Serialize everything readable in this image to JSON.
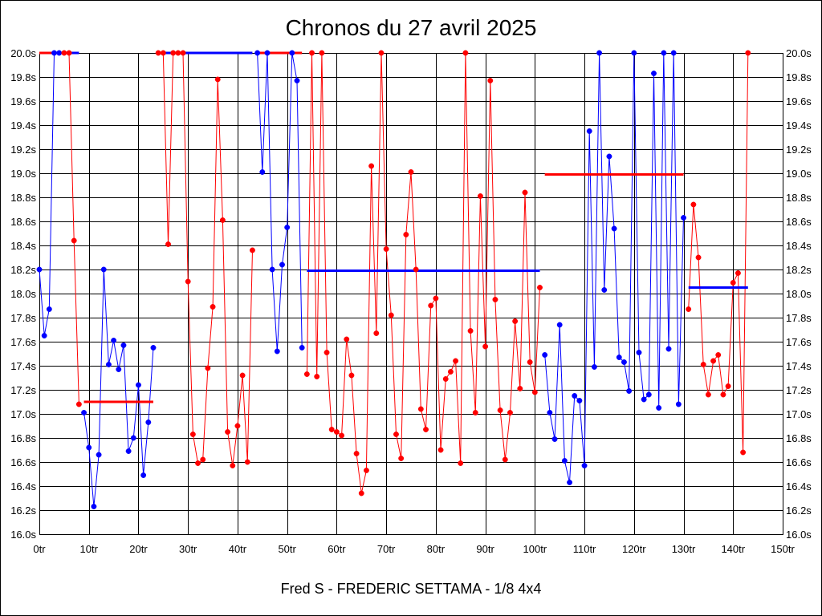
{
  "chart_data": {
    "type": "line",
    "title": "Chronos du 27 avril 2025",
    "caption": "Fred S - FREDERIC SETTAMA - 1/8 4x4",
    "xlabel": "",
    "ylabel": "",
    "xlim": [
      0,
      150
    ],
    "ylim": [
      16.0,
      20.0
    ],
    "grid": true,
    "x_ticks": [
      0,
      10,
      20,
      30,
      40,
      50,
      60,
      70,
      80,
      90,
      100,
      110,
      120,
      130,
      140,
      150
    ],
    "x_tick_labels": [
      "0tr",
      "10tr",
      "20tr",
      "30tr",
      "40tr",
      "50tr",
      "60tr",
      "70tr",
      "80tr",
      "90tr",
      "100tr",
      "110tr",
      "120tr",
      "130tr",
      "140tr",
      "150tr"
    ],
    "y_ticks": [
      16.0,
      16.2,
      16.4,
      16.6,
      16.8,
      17.0,
      17.2,
      17.4,
      17.6,
      17.8,
      18.0,
      18.2,
      18.4,
      18.6,
      18.8,
      19.0,
      19.2,
      19.4,
      19.6,
      19.8,
      20.0
    ],
    "y_tick_labels": [
      "16.0s",
      "16.2s",
      "16.4s",
      "16.6s",
      "16.8s",
      "17.0s",
      "17.2s",
      "17.4s",
      "17.6s",
      "17.8s",
      "18.0s",
      "18.2s",
      "18.4s",
      "18.6s",
      "18.8s",
      "19.0s",
      "19.2s",
      "19.4s",
      "19.6s",
      "19.8s",
      "20.0s"
    ],
    "colors": {
      "blue": "#0000ff",
      "red": "#ff0000",
      "grid": "#000000"
    },
    "series": [
      {
        "color": "#0000ff",
        "first_lap": 0,
        "values": [
          18.2,
          17.65,
          17.87,
          20.0,
          20.0
        ]
      },
      {
        "color": "#ff0000",
        "first_lap": 5,
        "values": [
          20.0,
          20.0,
          18.44,
          17.08
        ]
      },
      {
        "color": "#0000ff",
        "first_lap": 9,
        "values": [
          17.01,
          16.72,
          16.23,
          16.66,
          18.2,
          17.41,
          17.61,
          17.37,
          17.57,
          16.69,
          16.8,
          17.24,
          16.49,
          16.93,
          17.55
        ]
      },
      {
        "color": "#ff0000",
        "first_lap": 24,
        "values": [
          20.0,
          20.0,
          18.41,
          20.0,
          20.0,
          20.0,
          18.1,
          16.83,
          16.59,
          16.62,
          17.38,
          17.89,
          19.78,
          18.61,
          16.85,
          16.57,
          16.9,
          17.32,
          16.6,
          18.36
        ]
      },
      {
        "color": "#0000ff",
        "first_lap": 44,
        "values": [
          20.0,
          19.01,
          20.0,
          18.2,
          17.52,
          18.24,
          18.55,
          20.0,
          19.77,
          17.55
        ]
      },
      {
        "color": "#ff0000",
        "first_lap": 54,
        "values": [
          17.33,
          20.0,
          17.31,
          20.0,
          17.51,
          16.87,
          16.85,
          16.82,
          17.62,
          17.32,
          16.67,
          16.34,
          16.53,
          19.06,
          17.67,
          20.0,
          18.37,
          17.82,
          16.83,
          16.63,
          18.49,
          19.01,
          18.2,
          17.04,
          16.87,
          17.9,
          17.96,
          16.7,
          17.29,
          17.35,
          17.44,
          16.59,
          20.0,
          17.69,
          17.01,
          18.81,
          17.56,
          19.77,
          17.95,
          17.03,
          16.62,
          17.01,
          17.77,
          17.21,
          18.84,
          17.43,
          17.18,
          18.05
        ]
      },
      {
        "color": "#0000ff",
        "first_lap": 102,
        "values": [
          17.49,
          17.01,
          16.79,
          17.74,
          16.61,
          16.43,
          17.15,
          17.11,
          16.57,
          19.35,
          17.39,
          20.0,
          18.03,
          19.14,
          18.54,
          17.47,
          17.43,
          17.19,
          20.0,
          17.51,
          17.12,
          17.16,
          19.83,
          17.05,
          20.0,
          17.54,
          20.0,
          17.08,
          18.63
        ]
      },
      {
        "color": "#ff0000",
        "first_lap": 131,
        "values": [
          17.87,
          18.74,
          18.3,
          17.41,
          17.16,
          17.44,
          17.49,
          17.16,
          17.23,
          18.09,
          18.17,
          16.68,
          20.0
        ]
      }
    ],
    "mean_lines": [
      {
        "color": "#ff0000",
        "from_lap": 0,
        "to_lap": 4,
        "value": 20.0
      },
      {
        "color": "#0000ff",
        "from_lap": 5,
        "to_lap": 8,
        "value": 20.0
      },
      {
        "color": "#ff0000",
        "from_lap": 9,
        "to_lap": 23,
        "value": 17.1
      },
      {
        "color": "#0000ff",
        "from_lap": 24,
        "to_lap": 43,
        "value": 20.0
      },
      {
        "color": "#ff0000",
        "from_lap": 44,
        "to_lap": 53,
        "value": 20.0
      },
      {
        "color": "#0000ff",
        "from_lap": 54,
        "to_lap": 101,
        "value": 18.19
      },
      {
        "color": "#ff0000",
        "from_lap": 102,
        "to_lap": 130,
        "value": 18.99
      },
      {
        "color": "#0000ff",
        "from_lap": 131,
        "to_lap": 143,
        "value": 18.05
      }
    ]
  }
}
